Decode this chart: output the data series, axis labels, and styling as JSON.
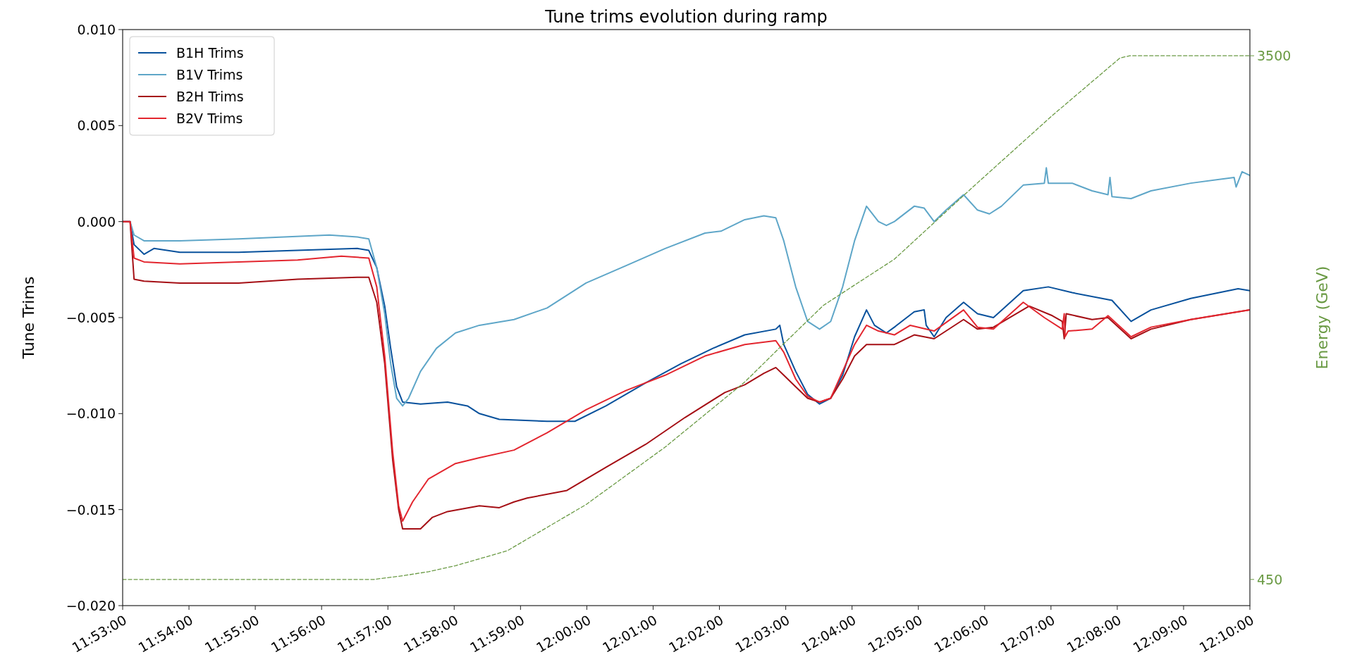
{
  "chart_data": {
    "type": "line",
    "title": "Tune trims evolution during ramp",
    "ylabel": "Tune Trims",
    "y2label": "Energy (GeV)",
    "legend": "top left",
    "marker": "none",
    "line_style": "solid",
    "xlim": [
      11.883333,
      12.166667
    ],
    "xticks": [
      {
        "value": 11.883333,
        "label": "11:53:00"
      },
      {
        "value": 11.9,
        "label": "11:54:00"
      },
      {
        "value": 11.916667,
        "label": "11:55:00"
      },
      {
        "value": 11.933333,
        "label": "11:56:00"
      },
      {
        "value": 11.95,
        "label": "11:57:00"
      },
      {
        "value": 11.966667,
        "label": "11:58:00"
      },
      {
        "value": 11.983333,
        "label": "11:59:00"
      },
      {
        "value": 12.0,
        "label": "12:00:00"
      },
      {
        "value": 12.016667,
        "label": "12:01:00"
      },
      {
        "value": 12.033333,
        "label": "12:02:00"
      },
      {
        "value": 12.05,
        "label": "12:03:00"
      },
      {
        "value": 12.066667,
        "label": "12:04:00"
      },
      {
        "value": 12.083333,
        "label": "12:05:00"
      },
      {
        "value": 12.1,
        "label": "12:06:00"
      },
      {
        "value": 12.116667,
        "label": "12:07:00"
      },
      {
        "value": 12.133333,
        "label": "12:08:00"
      },
      {
        "value": 12.15,
        "label": "12:09:00"
      },
      {
        "value": 12.166667,
        "label": "12:10:00"
      }
    ],
    "ylim": [
      -0.02,
      0.01
    ],
    "yticks": [
      {
        "value": -0.02,
        "label": "−0.020"
      },
      {
        "value": -0.015,
        "label": "−0.015"
      },
      {
        "value": -0.01,
        "label": "−0.010"
      },
      {
        "value": -0.005,
        "label": "−0.005"
      },
      {
        "value": 0,
        "label": "0.000"
      },
      {
        "value": 0.005,
        "label": "0.005"
      },
      {
        "value": 0.01,
        "label": "0.010"
      }
    ],
    "y2lim": [
      297.5,
      3652.5
    ],
    "y2ticks": [
      450,
      3500
    ],
    "series": [
      {
        "name": "B1H Trims",
        "color": "#08519c",
        "x": [
          11.883333,
          11.8852,
          11.8862,
          11.8887,
          11.8912,
          11.8977,
          11.9125,
          11.9273,
          11.9423,
          11.9452,
          11.9472,
          11.9492,
          11.9507,
          11.9522,
          11.9537,
          11.9582,
          11.965,
          11.97,
          11.973,
          11.978,
          11.99,
          11.997,
          12.0048,
          12.0148,
          12.0237,
          12.0317,
          12.0397,
          12.0475,
          12.0485,
          12.0495,
          12.0525,
          12.0555,
          12.0585,
          12.0613,
          12.0643,
          12.0673,
          12.0703,
          12.0723,
          12.0753,
          12.0773,
          12.0823,
          12.0848,
          12.0853,
          12.0873,
          12.0903,
          12.0947,
          12.0982,
          12.1022,
          12.1097,
          12.116,
          12.122,
          12.132,
          12.1368,
          12.1418,
          12.1518,
          12.1637,
          12.166667
        ],
        "values": [
          0,
          0,
          -0.0012,
          -0.0017,
          -0.0014,
          -0.0016,
          -0.0016,
          -0.0015,
          -0.0014,
          -0.0015,
          -0.0024,
          -0.0044,
          -0.0066,
          -0.0086,
          -0.0094,
          -0.0095,
          -0.0094,
          -0.0096,
          -0.01,
          -0.0103,
          -0.0104,
          -0.0104,
          -0.0096,
          -0.0084,
          -0.0074,
          -0.0066,
          -0.0059,
          -0.0056,
          -0.0054,
          -0.0064,
          -0.0078,
          -0.009,
          -0.0095,
          -0.0092,
          -0.008,
          -0.006,
          -0.0046,
          -0.0054,
          -0.0058,
          -0.0055,
          -0.0047,
          -0.0046,
          -0.0054,
          -0.006,
          -0.005,
          -0.0042,
          -0.0048,
          -0.005,
          -0.0036,
          -0.0034,
          -0.0037,
          -0.0041,
          -0.0052,
          -0.0046,
          -0.004,
          -0.0035,
          -0.0036
        ]
      },
      {
        "name": "B1V Trims",
        "color": "#5ea6c8",
        "x": [
          11.883333,
          11.8852,
          11.8862,
          11.8887,
          11.8977,
          11.9125,
          11.9353,
          11.9423,
          11.9452,
          11.9472,
          11.9492,
          11.9507,
          11.9522,
          11.9537,
          11.9552,
          11.9582,
          11.9622,
          11.967,
          11.973,
          11.9817,
          11.99,
          11.9998,
          12.0098,
          12.0197,
          12.0297,
          12.0337,
          12.0397,
          12.0445,
          12.0475,
          12.0495,
          12.0525,
          12.0555,
          12.0585,
          12.0613,
          12.0643,
          12.0673,
          12.0703,
          12.0733,
          12.0753,
          12.0773,
          12.0823,
          12.0848,
          12.0873,
          12.0903,
          12.0947,
          12.0982,
          12.1012,
          12.1042,
          12.1097,
          12.115,
          12.1155,
          12.116,
          12.122,
          12.127,
          12.131,
          12.1315,
          12.132,
          12.1368,
          12.1418,
          12.1518,
          12.1627,
          12.1632,
          12.1647,
          12.166667
        ],
        "values": [
          0,
          0,
          -0.0007,
          -0.001,
          -0.001,
          -0.0009,
          -0.0007,
          -0.0008,
          -0.0009,
          -0.0024,
          -0.0048,
          -0.0074,
          -0.0092,
          -0.0096,
          -0.0092,
          -0.0078,
          -0.0066,
          -0.0058,
          -0.0054,
          -0.0051,
          -0.0045,
          -0.0032,
          -0.0023,
          -0.0014,
          -0.0006,
          -0.0005,
          0.0001,
          0.0003,
          0.0002,
          -0.001,
          -0.0034,
          -0.0052,
          -0.0056,
          -0.0052,
          -0.0034,
          -0.001,
          0.0008,
          0,
          -0.0002,
          0,
          0.0008,
          0.0007,
          0,
          0.0006,
          0.0014,
          0.0006,
          0.0004,
          0.0008,
          0.0019,
          0.002,
          0.0028,
          0.002,
          0.002,
          0.0016,
          0.0014,
          0.0023,
          0.0013,
          0.0012,
          0.0016,
          0.002,
          0.0023,
          0.0018,
          0.0026,
          0.0024
        ]
      },
      {
        "name": "B2H Trims",
        "color": "#a50f15",
        "x": [
          11.883333,
          11.8852,
          11.8862,
          11.8887,
          11.8977,
          11.9125,
          11.9273,
          11.9423,
          11.9452,
          11.9472,
          11.9492,
          11.9512,
          11.9527,
          11.9537,
          11.9582,
          11.9612,
          11.965,
          11.973,
          11.978,
          11.9817,
          11.985,
          11.995,
          12.0048,
          12.0148,
          12.0247,
          12.0347,
          12.0397,
          12.0445,
          12.0475,
          12.0495,
          12.0525,
          12.0555,
          12.0585,
          12.0613,
          12.0643,
          12.0673,
          12.0703,
          12.0753,
          12.0773,
          12.0823,
          12.0873,
          12.0947,
          12.0982,
          12.1022,
          12.1112,
          12.117,
          12.1195,
          12.12,
          12.1205,
          12.127,
          12.131,
          12.1368,
          12.1418,
          12.1518,
          12.166667
        ],
        "values": [
          0,
          0,
          -0.003,
          -0.0031,
          -0.0032,
          -0.0032,
          -0.003,
          -0.0029,
          -0.0029,
          -0.0042,
          -0.0074,
          -0.0124,
          -0.015,
          -0.016,
          -0.016,
          -0.0154,
          -0.0151,
          -0.0148,
          -0.0149,
          -0.0146,
          -0.0144,
          -0.014,
          -0.0128,
          -0.0116,
          -0.0102,
          -0.0089,
          -0.0085,
          -0.0079,
          -0.0076,
          -0.008,
          -0.0086,
          -0.0092,
          -0.0094,
          -0.0092,
          -0.0082,
          -0.007,
          -0.0064,
          -0.0064,
          -0.0064,
          -0.0059,
          -0.0061,
          -0.0051,
          -0.0056,
          -0.0055,
          -0.0044,
          -0.0049,
          -0.0052,
          -0.0061,
          -0.0048,
          -0.0051,
          -0.005,
          -0.0061,
          -0.0056,
          -0.0051,
          -0.0046
        ]
      },
      {
        "name": "B2V Trims",
        "color": "#e3262f",
        "x": [
          11.883333,
          11.8852,
          11.8862,
          11.8887,
          11.8977,
          11.9125,
          11.9273,
          11.9383,
          11.9452,
          11.9472,
          11.9492,
          11.9512,
          11.9527,
          11.9537,
          11.9562,
          11.9602,
          11.967,
          11.973,
          11.9817,
          11.99,
          11.9998,
          12.0098,
          12.0197,
          12.0297,
          12.0397,
          12.0475,
          12.0495,
          12.0525,
          12.0555,
          12.0585,
          12.0613,
          12.0643,
          12.0673,
          12.0703,
          12.0733,
          12.0773,
          12.0813,
          12.0873,
          12.0947,
          12.0982,
          12.1022,
          12.1097,
          12.115,
          12.1195,
          12.12,
          12.1202,
          12.121,
          12.127,
          12.131,
          12.1368,
          12.1418,
          12.1518,
          12.166667
        ],
        "values": [
          0,
          0,
          -0.0019,
          -0.0021,
          -0.0022,
          -0.0021,
          -0.002,
          -0.0018,
          -0.0019,
          -0.0034,
          -0.007,
          -0.012,
          -0.0148,
          -0.0156,
          -0.0146,
          -0.0134,
          -0.0126,
          -0.0123,
          -0.0119,
          -0.011,
          -0.0098,
          -0.0088,
          -0.008,
          -0.007,
          -0.0064,
          -0.0062,
          -0.0068,
          -0.0082,
          -0.0091,
          -0.0094,
          -0.0092,
          -0.0078,
          -0.0064,
          -0.0054,
          -0.0057,
          -0.0059,
          -0.0054,
          -0.0057,
          -0.0046,
          -0.0055,
          -0.0056,
          -0.0042,
          -0.005,
          -0.0056,
          -0.0048,
          -0.006,
          -0.0057,
          -0.0056,
          -0.0049,
          -0.006,
          -0.0055,
          -0.0051,
          -0.0046
        ]
      },
      {
        "color": "#6a9a44",
        "axis": "y2",
        "line_style": "dashed",
        "x": [
          11.883333,
          11.9465,
          11.9542,
          11.9602,
          11.967,
          11.98,
          11.9998,
          12.0197,
          12.0397,
          12.0495,
          12.0595,
          12.0773,
          12.0972,
          12.117,
          12.134,
          12.1365,
          12.166667
        ],
        "values": [
          450,
          450,
          473,
          495,
          530,
          617,
          886,
          1221,
          1600,
          1823,
          2047,
          2315,
          2739,
          3152,
          3487,
          3500,
          3500
        ]
      }
    ]
  }
}
